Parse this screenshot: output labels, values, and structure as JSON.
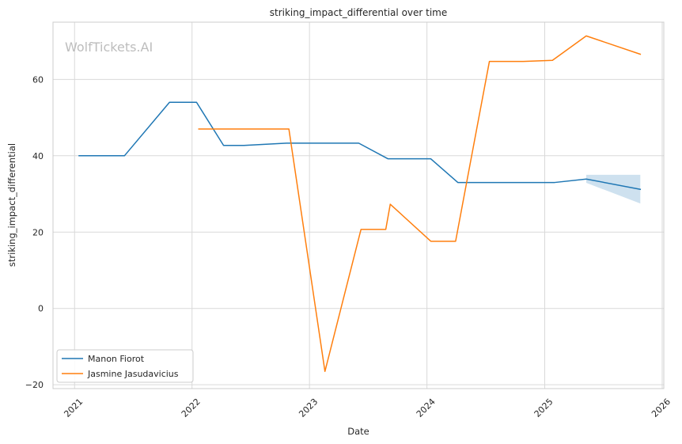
{
  "chart_data": {
    "type": "line",
    "title": "striking_impact_differential over time",
    "xlabel": "Date",
    "ylabel": "striking_impact_differential",
    "watermark": "WolfTickets.AI",
    "xlim": [
      "2020-10-26",
      "2026-01-06"
    ],
    "ylim": [
      -21,
      75
    ],
    "x_ticks": [
      "2021-01-01",
      "2022-01-01",
      "2023-01-01",
      "2024-01-01",
      "2025-01-01",
      "2026-01-01"
    ],
    "x_tick_labels": [
      "2021",
      "2022",
      "2023",
      "2024",
      "2025",
      "2026"
    ],
    "y_ticks": [
      -20,
      0,
      20,
      40,
      60
    ],
    "y_tick_labels": [
      "−20",
      "0",
      "20",
      "40",
      "60"
    ],
    "grid": true,
    "legend_position": "bottom-left",
    "series": [
      {
        "name": "Manon Fiorot",
        "color": "#1f77b4",
        "points": [
          {
            "x": "2021-01-15",
            "y": 40
          },
          {
            "x": "2021-06-05",
            "y": 40
          },
          {
            "x": "2021-10-23",
            "y": 54
          },
          {
            "x": "2022-01-15",
            "y": 54
          },
          {
            "x": "2022-04-09",
            "y": 42.7
          },
          {
            "x": "2022-06-11",
            "y": 42.7
          },
          {
            "x": "2022-10-22",
            "y": 43.3
          },
          {
            "x": "2023-06-03",
            "y": 43.3
          },
          {
            "x": "2023-09-02",
            "y": 39.2
          },
          {
            "x": "2024-01-13",
            "y": 39.2
          },
          {
            "x": "2024-04-06",
            "y": 33
          },
          {
            "x": "2025-02-01",
            "y": 33
          },
          {
            "x": "2025-05-10",
            "y": 33.9
          },
          {
            "x": "2025-10-25",
            "y": 31.2
          }
        ],
        "band": [
          {
            "x": "2025-05-10",
            "lower": 32.9,
            "upper": 35
          },
          {
            "x": "2025-10-25",
            "lower": 27.5,
            "upper": 35
          }
        ]
      },
      {
        "name": "Jasmine Jasudavicius",
        "color": "#ff7f0e",
        "points": [
          {
            "x": "2022-01-22",
            "y": 47
          },
          {
            "x": "2022-10-29",
            "y": 47
          },
          {
            "x": "2023-02-18",
            "y": -16.5
          },
          {
            "x": "2023-06-10",
            "y": 20.7
          },
          {
            "x": "2023-08-26",
            "y": 20.7
          },
          {
            "x": "2023-09-09",
            "y": 27.3
          },
          {
            "x": "2024-01-13",
            "y": 17.6
          },
          {
            "x": "2024-03-30",
            "y": 17.6
          },
          {
            "x": "2024-07-13",
            "y": 64.7
          },
          {
            "x": "2024-10-26",
            "y": 64.7
          },
          {
            "x": "2025-01-25",
            "y": 65
          },
          {
            "x": "2025-05-10",
            "y": 71.4
          },
          {
            "x": "2025-10-25",
            "y": 66.6
          }
        ]
      }
    ]
  }
}
